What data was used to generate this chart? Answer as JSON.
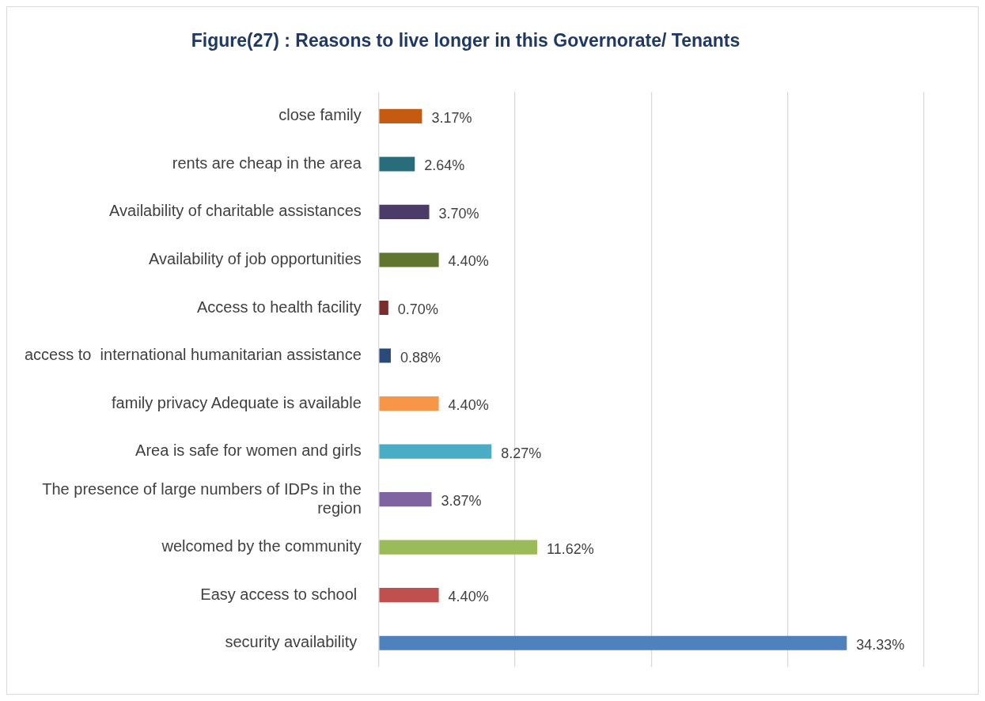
{
  "chart_data": {
    "type": "bar",
    "orientation": "horizontal",
    "title": "Figure(27) : Reasons to live longer in this Governorate/ Tenants",
    "categories": [
      "close family",
      "rents are cheap in the area",
      "Availability of charitable assistances",
      "Availability of job opportunities",
      "Access to health facility",
      "access to  international humanitarian assistance",
      "family privacy Adequate is available",
      "Area is safe for women and girls",
      "The presence of large numbers of IDPs in the region",
      "welcomed by the community",
      "Easy access to school ",
      "security availability "
    ],
    "values": [
      3.17,
      2.64,
      3.7,
      4.4,
      0.7,
      0.88,
      4.4,
      8.27,
      3.87,
      11.62,
      4.4,
      34.33
    ],
    "value_labels": [
      "3.17%",
      "2.64%",
      "3.70%",
      "4.40%",
      "0.70%",
      "0.88%",
      "4.40%",
      "8.27%",
      "3.87%",
      "11.62%",
      "4.40%",
      "34.33%"
    ],
    "colors": [
      "#c55a11",
      "#276d7c",
      "#4b3b68",
      "#5f7530",
      "#7b2c2c",
      "#2a4a7b",
      "#f79646",
      "#4bacc6",
      "#8064a2",
      "#9bbb59",
      "#c0504d",
      "#4f81bd"
    ],
    "xlim": [
      0,
      40
    ],
    "xticks": [
      {
        "value": 0,
        "label": null
      },
      {
        "value": 10,
        "label": null
      },
      {
        "value": 20,
        "label": null
      },
      {
        "value": 30,
        "label": null
      },
      {
        "value": 40,
        "label": null
      }
    ],
    "grid": "x",
    "tick_labels": "y",
    "legend": false
  }
}
